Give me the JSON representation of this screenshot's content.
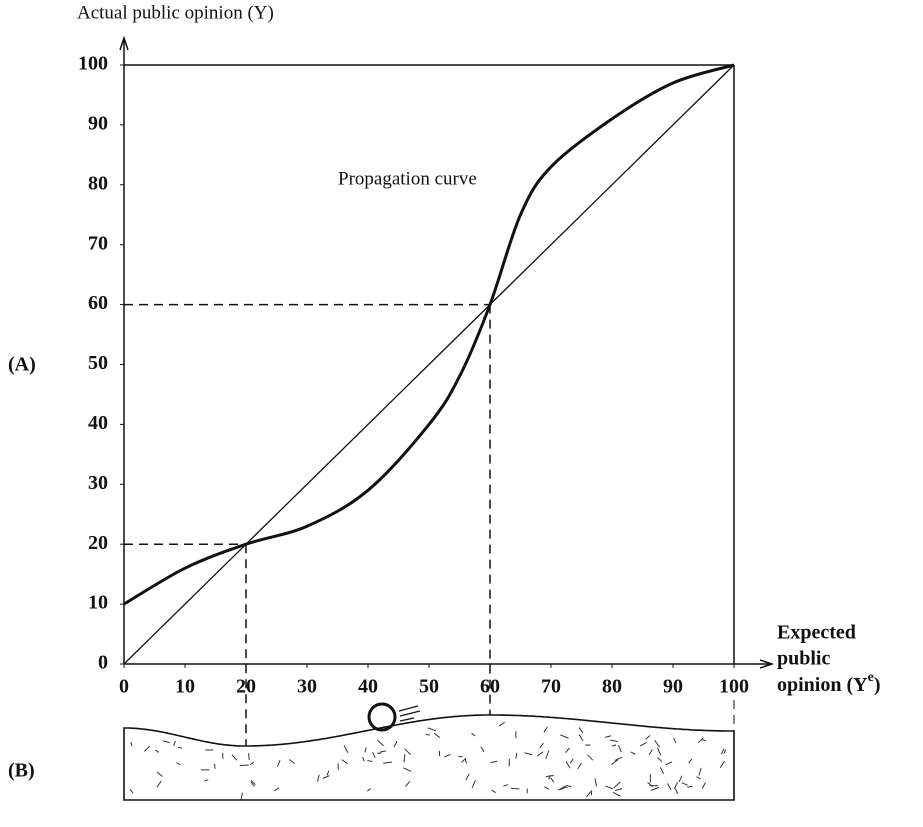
{
  "chart_data": {
    "type": "line",
    "y_label": "Actual public opinion (Y)",
    "x_label": {
      "lines": [
        "Expected",
        "public"
      ],
      "last_line": {
        "text": "opinion (Y",
        "superscript": "e",
        "suffix": ")"
      }
    },
    "annotation": "Propagation curve",
    "panel_labels": [
      "(A)",
      "(B)"
    ],
    "series": [
      {
        "name": "Propagation curve",
        "color": "#111111",
        "x": [
          0,
          10,
          20,
          30,
          40,
          50,
          55,
          60,
          65,
          70,
          80,
          90,
          100
        ],
        "values": [
          10,
          16,
          20,
          23,
          29,
          40,
          48,
          60,
          75,
          83,
          91,
          97,
          100
        ]
      },
      {
        "color": "#111111",
        "x": [
          0,
          100
        ],
        "values": [
          0,
          100
        ]
      }
    ],
    "equilibria": [
      {
        "x": 20,
        "y": 20
      },
      {
        "x": 60,
        "y": 60
      }
    ],
    "xlim": [
      0,
      100
    ],
    "ylim": [
      0,
      100
    ],
    "xticks": [
      0,
      10,
      20,
      30,
      40,
      50,
      60,
      70,
      80,
      90,
      100
    ],
    "yticks": [
      0,
      10,
      20,
      30,
      40,
      50,
      60,
      70,
      80,
      90,
      100
    ]
  }
}
